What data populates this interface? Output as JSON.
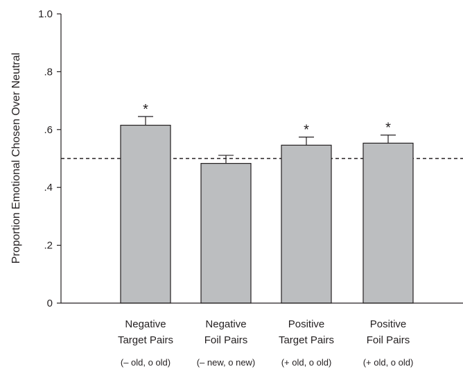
{
  "chart_data": {
    "type": "bar",
    "ylabel": "Proportion Emotional Chosen Over Neutral",
    "ylim": [
      0,
      1.0
    ],
    "yticks": [
      {
        "value": 0,
        "label": "0"
      },
      {
        "value": 0.2,
        "label": ".2"
      },
      {
        "value": 0.4,
        "label": ".4"
      },
      {
        "value": 0.6,
        "label": ".6"
      },
      {
        "value": 0.8,
        "label": ".8"
      },
      {
        "value": 1.0,
        "label": "1.0"
      }
    ],
    "reference_line": 0.5,
    "categories": [
      {
        "line1": "Negative",
        "line2": "Target Pairs",
        "sub": "(– old, o old)"
      },
      {
        "line1": "Negative",
        "line2": "Foil Pairs",
        "sub": "(– new, o new)"
      },
      {
        "line1": "Positive",
        "line2": "Target Pairs",
        "sub": "(+ old, o old)"
      },
      {
        "line1": "Positive",
        "line2": "Foil Pairs",
        "sub": "(+ old, o old)"
      }
    ],
    "values": [
      0.615,
      0.483,
      0.546,
      0.553
    ],
    "errors": [
      0.03,
      0.028,
      0.028,
      0.028
    ],
    "significant": [
      true,
      false,
      true,
      true
    ],
    "significance_marker": "*",
    "bar_color": "#bcbec0",
    "grid": false
  }
}
